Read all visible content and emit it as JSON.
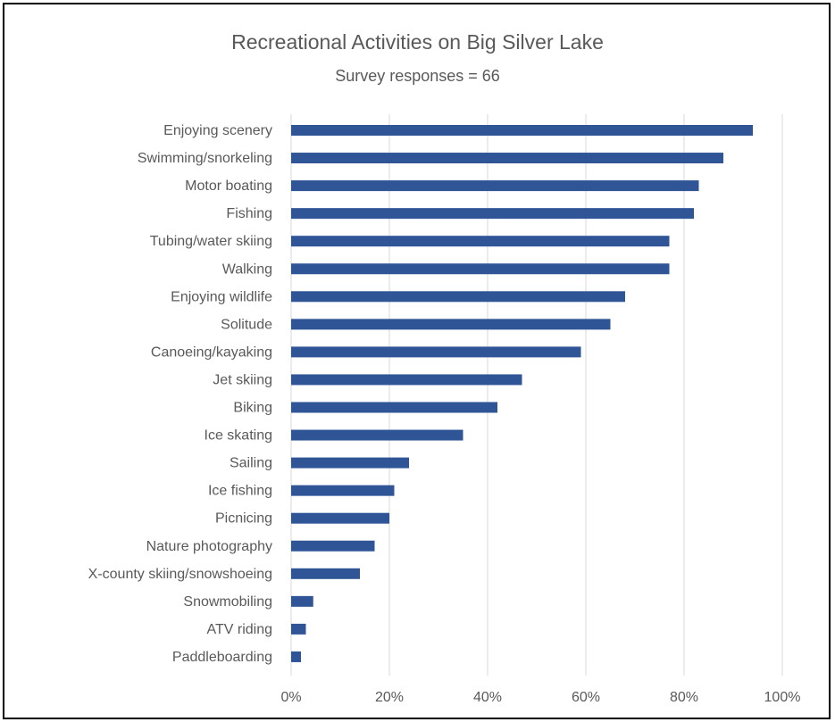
{
  "chart_data": {
    "type": "bar",
    "orientation": "horizontal",
    "title": "Recreational Activities on Big Silver Lake",
    "subtitle": "Survey responses = 66",
    "categories": [
      "Enjoying scenery",
      "Swimming/snorkeling",
      "Motor boating",
      "Fishing",
      "Tubing/water skiing",
      "Walking",
      "Enjoying wildlife",
      "Solitude",
      "Canoeing/kayaking",
      "Jet skiing",
      "Biking",
      "Ice skating",
      "Sailing",
      "Ice fishing",
      "Picnicing",
      "Nature photography",
      "X-county skiing/snowshoeing",
      "Snowmobiling",
      "ATV riding",
      "Paddleboarding"
    ],
    "values": [
      94,
      88,
      83,
      82,
      77,
      77,
      68,
      65,
      59,
      47,
      42,
      35,
      24,
      21,
      20,
      17,
      14,
      4.5,
      3,
      2
    ],
    "xlim": [
      0,
      100
    ],
    "xticks": [
      "0%",
      "20%",
      "40%",
      "60%",
      "80%",
      "100%"
    ],
    "grid": true,
    "colors": {
      "bar": "#2F5597",
      "grid": "#D9D9D9",
      "text": "#595959"
    }
  }
}
